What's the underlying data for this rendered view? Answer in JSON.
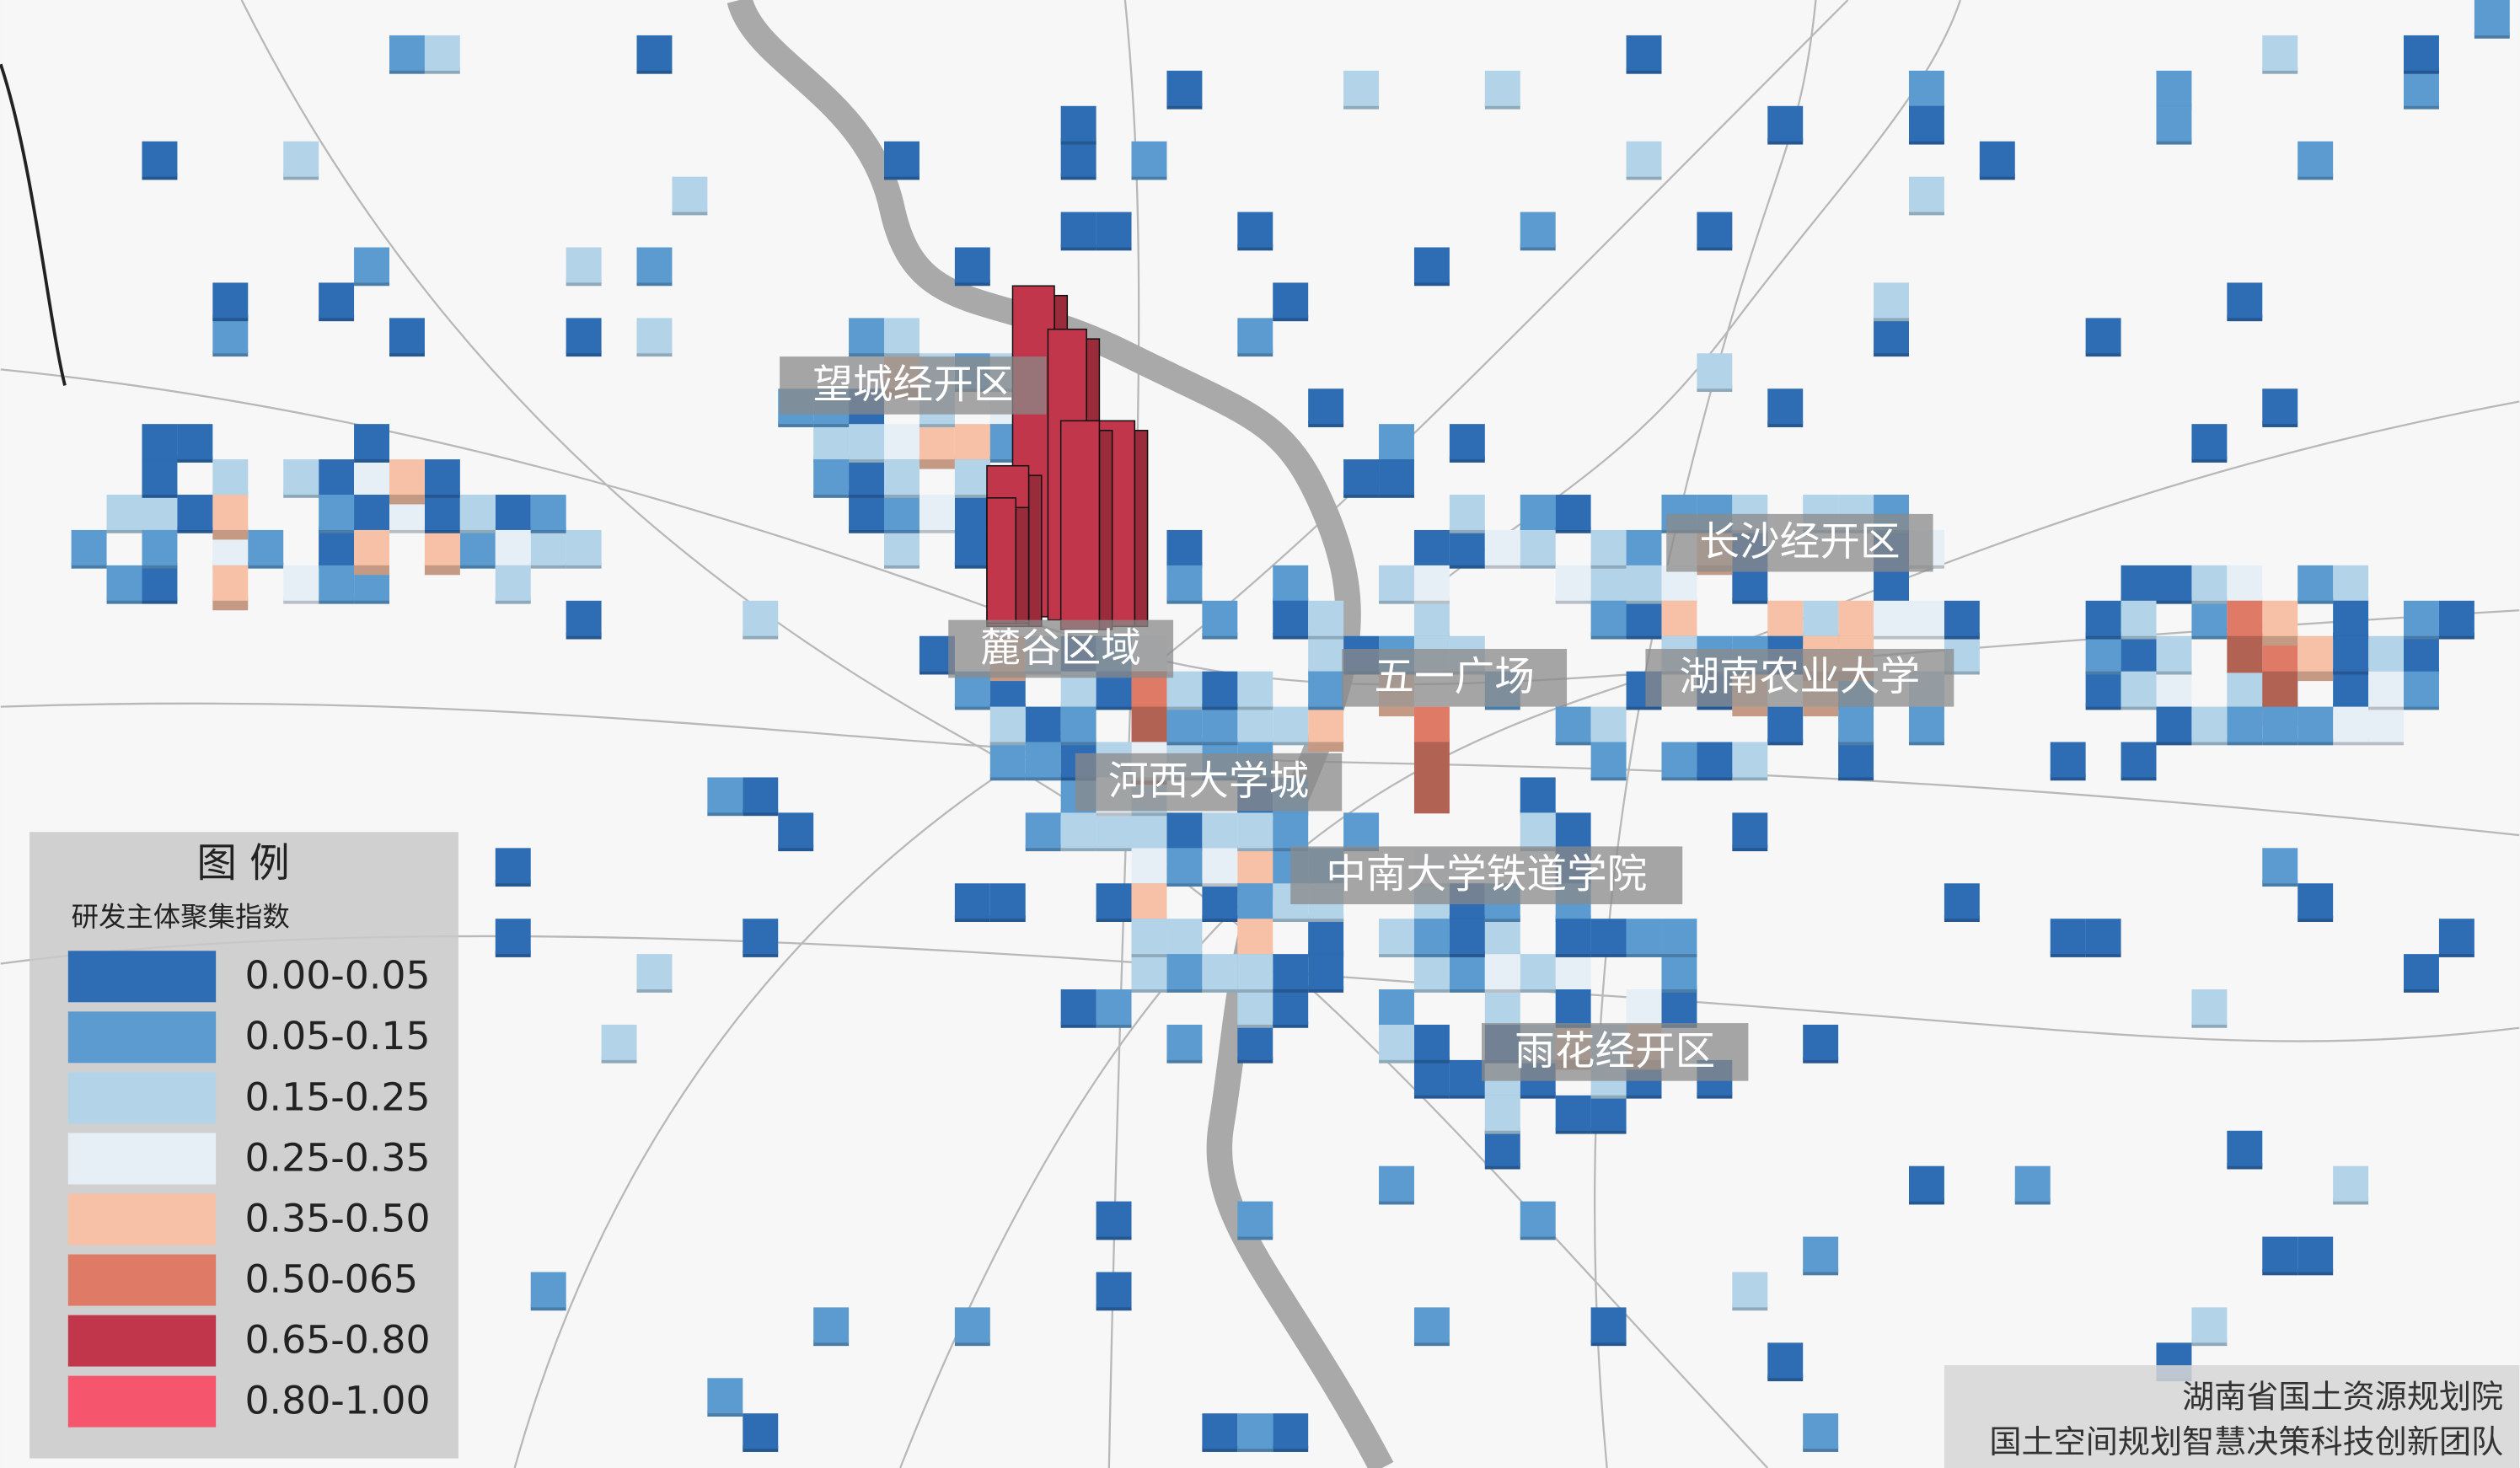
{
  "legend": {
    "title": "图 例",
    "subtitle": "研发主体聚集指数",
    "items": [
      {
        "label": "0.00-0.05",
        "color": "#2e6db4"
      },
      {
        "label": "0.05-0.15",
        "color": "#5b9bd0"
      },
      {
        "label": "0.15-0.25",
        "color": "#b2d3e8"
      },
      {
        "label": "0.25-0.35",
        "color": "#e6eef6"
      },
      {
        "label": "0.35-0.50",
        "color": "#f6c1a6"
      },
      {
        "label": "0.50-065",
        "color": "#df7a66"
      },
      {
        "label": "0.65-0.80",
        "color": "#c1364a"
      },
      {
        "label": "0.80-1.00",
        "color": "#f5556d"
      }
    ]
  },
  "places": [
    {
      "label": "望城经开区"
    },
    {
      "label": "麓谷区域"
    },
    {
      "label": "五一广场"
    },
    {
      "label": "河西大学城"
    },
    {
      "label": "中南大学铁道学院"
    },
    {
      "label": "长沙经开区"
    },
    {
      "label": "湖南农业大学"
    },
    {
      "label": "雨花经开区"
    }
  ],
  "credits": [
    "湖南省国土资源规划院",
    "国土空间规划智慧决策科技创新团队"
  ]
}
